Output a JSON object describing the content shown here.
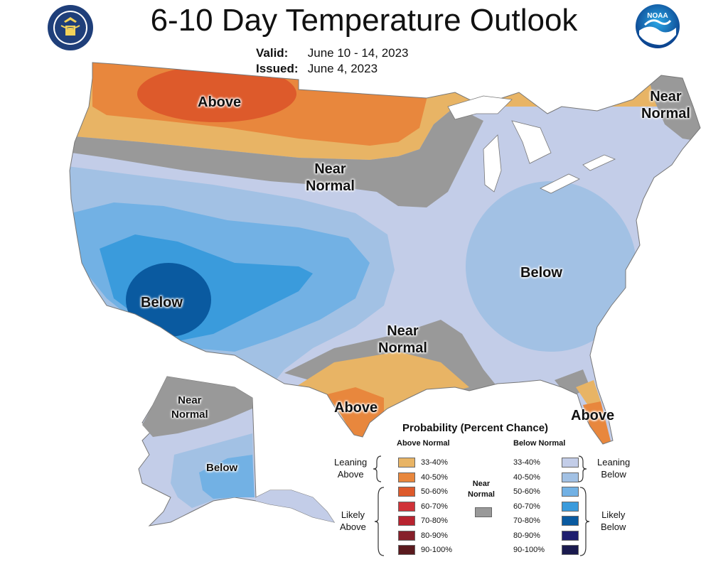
{
  "header": {
    "title": "6-10 Day Temperature Outlook",
    "valid_label": "Valid:",
    "valid_value": "June 10 - 14, 2023",
    "issued_label": "Issued:",
    "issued_value": "June 4, 2023"
  },
  "map_labels": {
    "above_north": "Above",
    "near_normal_central_1": "Near",
    "near_normal_central_2": "Normal",
    "near_normal_ne_1": "Near",
    "near_normal_ne_2": "Normal",
    "below_southwest": "Below",
    "below_east": "Below",
    "near_normal_south_1": "Near",
    "near_normal_south_2": "Normal",
    "above_texas": "Above",
    "above_florida": "Above",
    "near_normal_alaska_1": "Near",
    "near_normal_alaska_2": "Normal",
    "below_alaska": "Below"
  },
  "legend": {
    "title": "Probability (Percent Chance)",
    "above_head": "Above Normal",
    "below_head": "Below Normal",
    "near_head_1": "Near",
    "near_head_2": "Normal",
    "leaning_above_1": "Leaning",
    "leaning_above_2": "Above",
    "likely_above_1": "Likely",
    "likely_above_2": "Above",
    "leaning_below_1": "Leaning",
    "leaning_below_2": "Below",
    "likely_below_1": "Likely",
    "likely_below_2": "Below",
    "above_rows": [
      {
        "pct": "33-40%",
        "color": "#E8B465"
      },
      {
        "pct": "40-50%",
        "color": "#E8873D"
      },
      {
        "pct": "50-60%",
        "color": "#DD5A2B"
      },
      {
        "pct": "60-70%",
        "color": "#D03238"
      },
      {
        "pct": "70-80%",
        "color": "#B8232F"
      },
      {
        "pct": "80-90%",
        "color": "#86202A"
      },
      {
        "pct": "90-100%",
        "color": "#5A1A1E"
      }
    ],
    "below_rows": [
      {
        "pct": "33-40%",
        "color": "#C3CDE8"
      },
      {
        "pct": "40-50%",
        "color": "#A2C1E4"
      },
      {
        "pct": "50-60%",
        "color": "#72B1E4"
      },
      {
        "pct": "60-70%",
        "color": "#3A9BDC"
      },
      {
        "pct": "70-80%",
        "color": "#0A5AA0"
      },
      {
        "pct": "80-90%",
        "color": "#1E1E6E"
      },
      {
        "pct": "90-100%",
        "color": "#1A1A4E"
      }
    ],
    "near_color": "#999999"
  },
  "icons": {
    "left_logo": "commerce-department-seal-icon",
    "right_logo": "noaa-logo-icon"
  }
}
